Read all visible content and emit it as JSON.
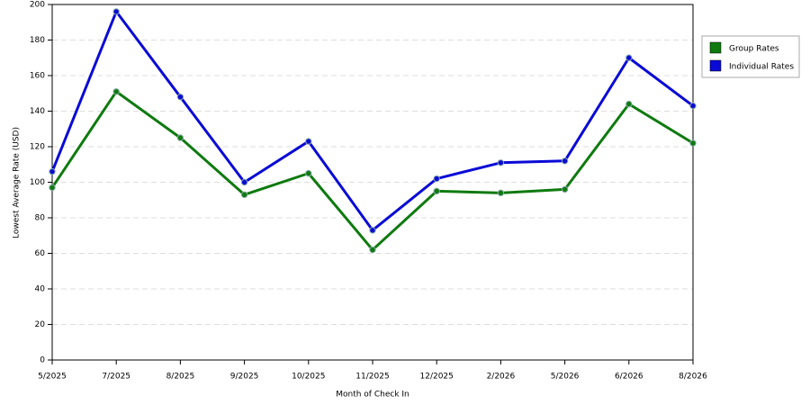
{
  "chart_data": {
    "type": "line",
    "x_label": "Month of Check In",
    "y_label": "Lowest Average Rate (USD)",
    "categories": [
      "5/2025",
      "7/2025",
      "8/2025",
      "9/2025",
      "10/2025",
      "11/2025",
      "12/2025",
      "2/2026",
      "5/2026",
      "6/2026",
      "8/2026"
    ],
    "series": [
      {
        "name": "Group Rates",
        "color": "#0f7a0f",
        "values": [
          97,
          151,
          125,
          93,
          105,
          62,
          95,
          94,
          96,
          144,
          122
        ]
      },
      {
        "name": "Individual Rates",
        "color": "#0a0ad6",
        "values": [
          106,
          196,
          148,
          100,
          123,
          73,
          102,
          111,
          112,
          170,
          143
        ]
      }
    ],
    "ylim": [
      0,
      200
    ],
    "yticks": [
      0,
      20,
      40,
      60,
      80,
      100,
      120,
      140,
      160,
      180,
      200
    ],
    "grid": true,
    "legend": "right"
  }
}
